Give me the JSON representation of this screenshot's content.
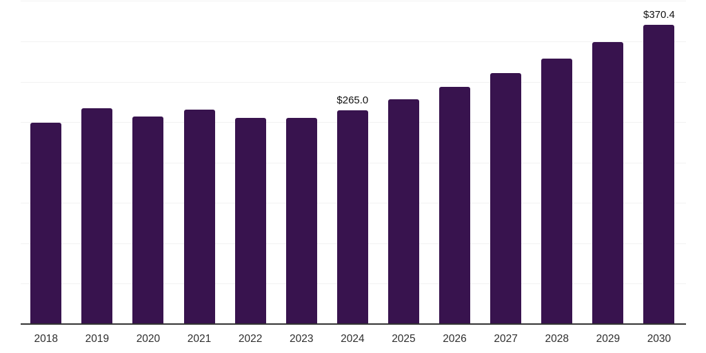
{
  "chart_data": {
    "type": "bar",
    "title": "",
    "xlabel": "",
    "ylabel": "",
    "categories": [
      "2018",
      "2019",
      "2020",
      "2021",
      "2022",
      "2023",
      "2024",
      "2025",
      "2026",
      "2027",
      "2028",
      "2029",
      "2030"
    ],
    "values": [
      249.5,
      267.3,
      256.8,
      265.5,
      255.1,
      255.4,
      265.0,
      278.2,
      293.4,
      310.7,
      328.5,
      349.2,
      370.4
    ],
    "bar_labels": [
      "",
      "",
      "",
      "",
      "",
      "",
      "$265.0",
      "",
      "",
      "",
      "",
      "",
      "$370.4"
    ],
    "ylim": [
      0,
      400
    ],
    "grid_step": 50,
    "grid": true,
    "legend": false,
    "colors": {
      "bar": "#38134e",
      "gridline": "#f2f2f2",
      "axis": "#333333",
      "tick_label": "#2e2e2e",
      "data_label": "#111111",
      "background": "#ffffff"
    }
  }
}
